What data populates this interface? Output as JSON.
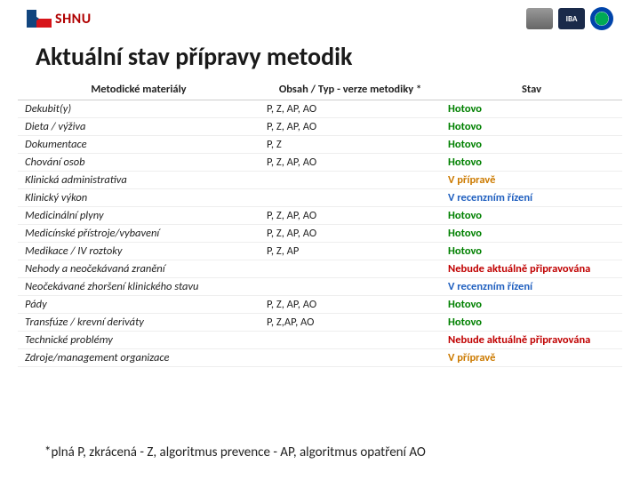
{
  "header": {
    "org_abbrev": "SHNU",
    "badge2_text": "IBA"
  },
  "title": "Aktuální stav přípravy metodik",
  "table": {
    "headers": [
      "Metodické materiály",
      "Obsah / Typ - verze metodiky *",
      "Stav"
    ],
    "rows": [
      {
        "m": "Dekubit(y)",
        "c": "P, Z, AP, AO",
        "s": "Hotovo",
        "cls": "green"
      },
      {
        "m": "Dieta / výživa",
        "c": "P, Z, AP, AO",
        "s": "Hotovo",
        "cls": "green"
      },
      {
        "m": "Dokumentace",
        "c": "P, Z",
        "s": "Hotovo",
        "cls": "green"
      },
      {
        "m": "Chování osob",
        "c": "P, Z, AP, AO",
        "s": "Hotovo",
        "cls": "green"
      },
      {
        "m": "Klinická administrativa",
        "c": "",
        "s": "V přípravě",
        "cls": "orange"
      },
      {
        "m": "Klinický výkon",
        "c": "",
        "s": "V recenzním řízení",
        "cls": "blue"
      },
      {
        "m": "Medicinální plyny",
        "c": "P, Z, AP, AO",
        "s": "Hotovo",
        "cls": "green"
      },
      {
        "m": "Medicínské přístroje/vybavení",
        "c": "P, Z, AP, AO",
        "s": "Hotovo",
        "cls": "green"
      },
      {
        "m": "Medikace / IV roztoky",
        "c": "P, Z, AP",
        "s": "Hotovo",
        "cls": "green"
      },
      {
        "m": "Nehody a neočekávaná zranění",
        "c": "",
        "s": "Nebude aktuálně připravována",
        "cls": "red"
      },
      {
        "m": "Neočekávané zhoršení klinického stavu",
        "c": "",
        "s": "V recenzním řízení",
        "cls": "blue"
      },
      {
        "m": "Pády",
        "c": "P, Z, AP, AO",
        "s": "Hotovo",
        "cls": "green"
      },
      {
        "m": "Transfúze / krevní deriváty",
        "c": "P, Z,AP, AO",
        "s": "Hotovo",
        "cls": "green"
      },
      {
        "m": "Technické problémy",
        "c": "",
        "s": "Nebude aktuálně připravována",
        "cls": "red"
      },
      {
        "m": "Zdroje/management organizace",
        "c": "",
        "s": "V přípravě",
        "cls": "orange"
      }
    ]
  },
  "footnote": "*plná P, zkrácená - Z, algoritmus prevence - AP, algoritmus opatření AO"
}
